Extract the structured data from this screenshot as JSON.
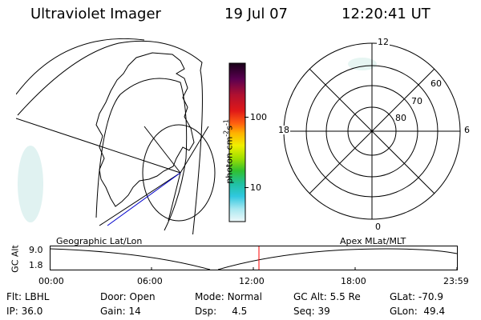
{
  "header": {
    "instrument": "Ultraviolet Imager",
    "date": "19 Jul 07",
    "time": "12:20:41 UT"
  },
  "colorbar": {
    "unit": "photon cm",
    "unit_sup1": "-2",
    "unit_mid": "s",
    "unit_sup2": "-1",
    "tick_100": "100",
    "tick_10": "10"
  },
  "polar": {
    "label_top": "12",
    "label_bottom": "0",
    "label_left": "18",
    "label_right": "6",
    "label_60": "60",
    "label_70": "70",
    "label_80": "80"
  },
  "timeline": {
    "left_caption": "Geographic Lat/Lon",
    "right_caption": "Apex MLat/MLT",
    "axis_title": "GC Alt",
    "ytick_top": "9.0",
    "ytick_bottom": "1.8",
    "xticks": [
      "00:00",
      "06:00",
      "12:00",
      "18:00",
      "23:59"
    ]
  },
  "info": {
    "flt_label": "Flt:",
    "flt": "LBHL",
    "ip_label": "IP:",
    "ip": "36.0",
    "door_label": "Door:",
    "door": "Open",
    "gain_label": "Gain:",
    "gain": "14",
    "mode_label": "Mode:",
    "mode": "Normal",
    "dsp_label": "Dsp:",
    "dsp": "4.5",
    "gcalt_label": "GC Alt:",
    "gcalt": "5.5 Re",
    "seq_label": "Seq:",
    "seq": "39",
    "glat_label": "GLat:",
    "glat": "-70.9",
    "glon_label": "GLon:",
    "glon": "49.4"
  },
  "colors": {
    "marker": "#ff0000",
    "track": "#0000cc"
  }
}
